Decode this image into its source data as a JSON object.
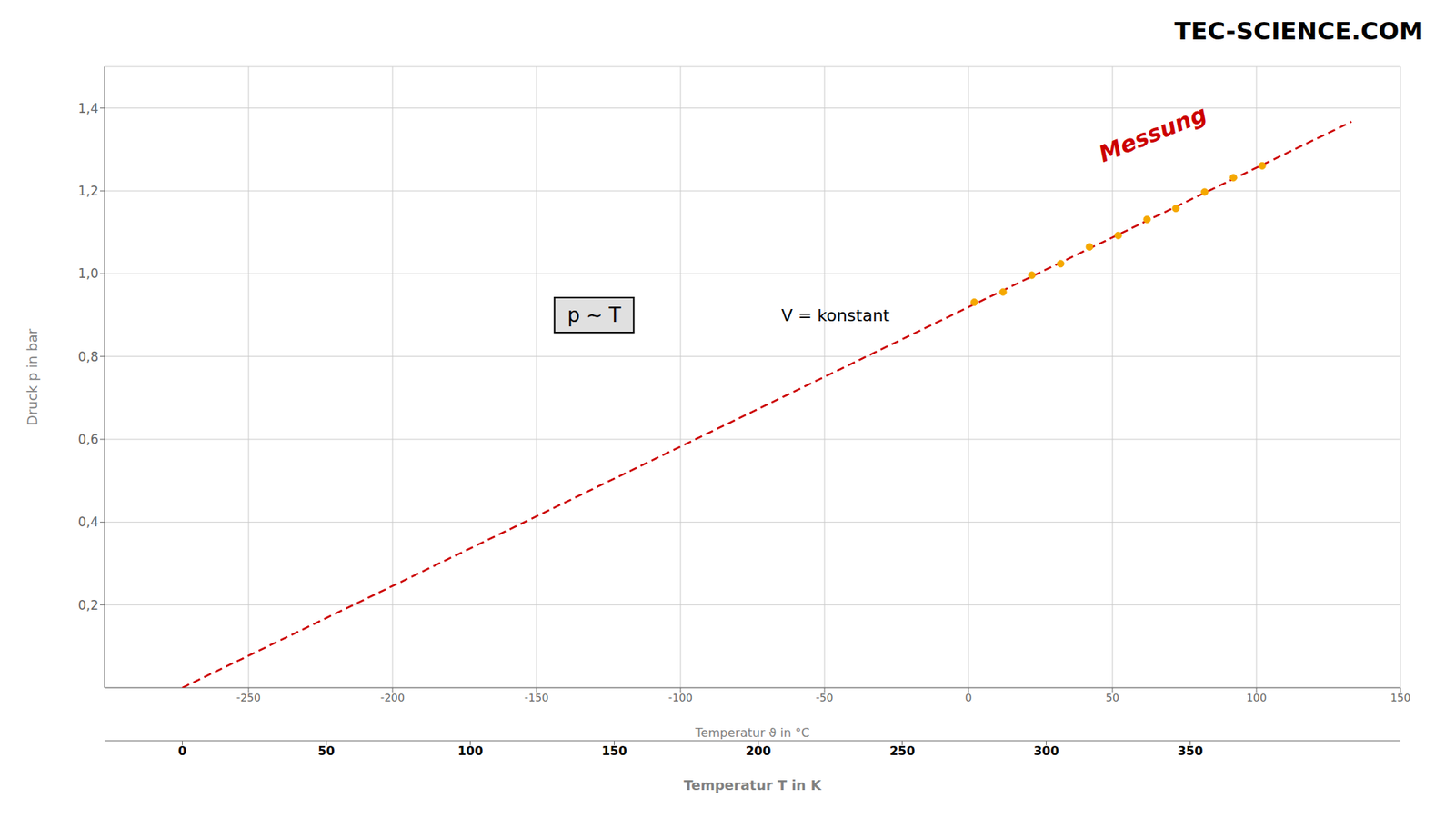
{
  "chart_data": {
    "type": "scatter",
    "xlabel": "Temperatur ϑ in °C",
    "x2label": "Temperatur T in K",
    "ylabel": "Druck p in bar",
    "xlim": [
      -300,
      150
    ],
    "xticks": [
      -250,
      -200,
      -150,
      -100,
      -50,
      0,
      50,
      100,
      150
    ],
    "x2ticks": [
      {
        "value": -273,
        "label": "0"
      },
      {
        "value": -223,
        "label": "50"
      },
      {
        "value": -173,
        "label": "100"
      },
      {
        "value": -123,
        "label": "150"
      },
      {
        "value": -73,
        "label": "200"
      },
      {
        "value": -23,
        "label": "250"
      },
      {
        "value": 27,
        "label": "300"
      },
      {
        "value": 77,
        "label": "350"
      }
    ],
    "ylim": [
      0,
      1.5
    ],
    "yticks": [
      {
        "value": 0.2,
        "label": "0,2"
      },
      {
        "value": 0.4,
        "label": "0,4"
      },
      {
        "value": 0.6,
        "label": "0,6"
      },
      {
        "value": 0.8,
        "label": "0,8"
      },
      {
        "value": 1.0,
        "label": "1,0"
      },
      {
        "value": 1.2,
        "label": "1,2"
      },
      {
        "value": 1.4,
        "label": "1,4"
      }
    ],
    "grid": true,
    "series": [
      {
        "type": "line",
        "color": "#cc0000",
        "line_style": "dashed",
        "x": [
          -273,
          133
        ],
        "values": [
          0,
          1.367002
        ]
      },
      {
        "type": "scatter",
        "color": "#f5a800",
        "marker": "circle",
        "x": [
          2,
          12,
          22,
          32,
          42,
          52,
          62,
          72,
          82,
          92,
          102
        ],
        "values": [
          0.930925,
          0.955595,
          0.996265,
          1.023935,
          1.064605,
          1.092275,
          1.130945,
          1.157615,
          1.197285,
          1.231955,
          1.260625
        ]
      }
    ],
    "annotations": [
      {
        "text": "Messung",
        "x": 65,
        "y": 1.32
      },
      {
        "text": "p ∼ T",
        "x": -130,
        "y": 0.9
      },
      {
        "text": "V = konstant",
        "x": -65,
        "y": 0.9
      },
      {
        "text": "TEC-SCIENCE.COM"
      }
    ]
  }
}
